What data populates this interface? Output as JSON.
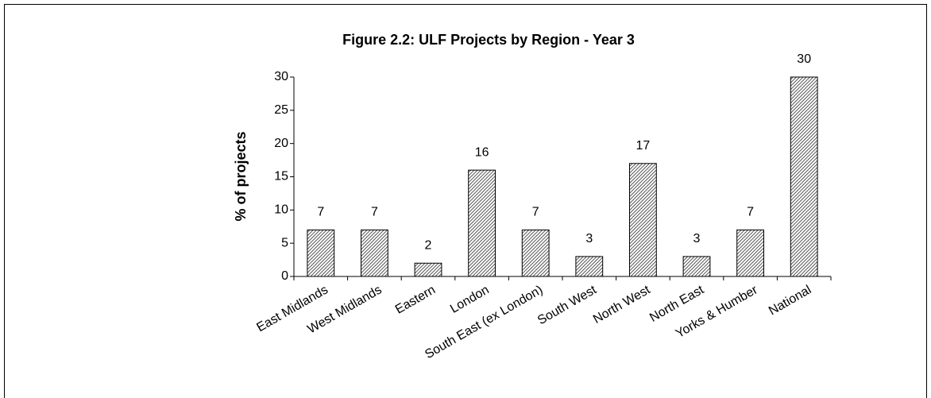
{
  "chart_data": {
    "type": "bar",
    "title": "Figure 2.2: ULF Projects by Region  - Year 3",
    "ylabel": "% of projects",
    "categories": [
      "East Midlands",
      "West Midlands",
      "Eastern",
      "London",
      "South East (ex London)",
      "South West",
      "North West",
      "North East",
      "Yorks & Humber",
      "National"
    ],
    "values": [
      7,
      7,
      2,
      16,
      7,
      3,
      17,
      3,
      7,
      30
    ],
    "color": "#808080",
    "ylim": [
      0,
      30
    ],
    "yticks": [
      0,
      5,
      10,
      15,
      20,
      25,
      30
    ],
    "grid": false
  }
}
